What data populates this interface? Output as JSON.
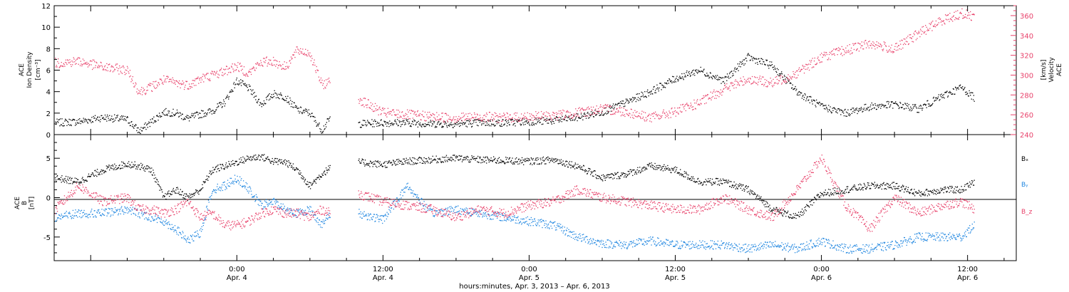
{
  "chart_data": [
    {
      "type": "scatter",
      "panel": "top",
      "ylabel_left_lines": [
        "ACE",
        "Ion Density",
        "[cm⁻³]"
      ],
      "ylabel_right_lines": [
        "ACE",
        "Velocity",
        "[km/s]"
      ],
      "ylim_left": [
        0,
        12
      ],
      "yticks_left": [
        "0",
        "2",
        "4",
        "6",
        "8",
        "10",
        "12"
      ],
      "ylim_right": [
        240,
        370
      ],
      "yticks_right": [
        "240",
        "260",
        "280",
        "300",
        "320",
        "340",
        "360"
      ],
      "data_gap_hours": [
        22.8,
        24.8
      ],
      "series": [
        {
          "axis": "left",
          "color": "#000000",
          "x_hours": [
            0.1,
            2,
            4,
            6,
            7,
            8,
            9,
            10,
            11,
            12,
            13,
            14,
            15,
            16,
            17,
            18,
            19,
            20,
            21,
            22,
            22.7,
            25,
            27,
            29,
            31,
            33,
            35,
            37,
            39,
            41,
            43,
            45,
            47,
            49,
            51,
            53,
            55,
            57,
            59,
            61,
            63,
            65,
            67,
            69,
            71,
            73,
            74.5,
            75.6
          ],
          "y": [
            1.1,
            1.2,
            1.6,
            1.4,
            0.3,
            1.2,
            2.1,
            2.0,
            1.5,
            1.9,
            2.2,
            3.0,
            5.0,
            4.3,
            2.8,
            3.8,
            3.5,
            2.3,
            2.0,
            0.4,
            1.6,
            1.0,
            1.1,
            1.1,
            1.0,
            1.0,
            1.1,
            1.1,
            1.2,
            1.3,
            1.6,
            2.1,
            3.0,
            4.0,
            5.2,
            6.0,
            5.0,
            7.2,
            6.4,
            4.0,
            2.6,
            2.0,
            2.6,
            2.8,
            2.4,
            3.6,
            4.4,
            3.4
          ]
        },
        {
          "axis": "right",
          "color": "#e8416a",
          "x_hours": [
            0.1,
            2,
            4,
            6,
            7,
            8,
            9,
            10,
            11,
            12,
            13,
            14,
            15,
            16,
            17,
            18,
            19,
            20,
            21,
            22,
            22.7,
            25,
            27,
            29,
            31,
            33,
            35,
            37,
            39,
            41,
            43,
            45,
            47,
            49,
            51,
            53,
            55,
            57,
            59,
            61,
            63,
            65,
            67,
            69,
            71,
            73,
            74.5,
            75.6
          ],
          "y": [
            312,
            314,
            308,
            305,
            283,
            288,
            295,
            292,
            290,
            296,
            300,
            304,
            309,
            302,
            313,
            314,
            308,
            325,
            322,
            290,
            294,
            276,
            262,
            260,
            258,
            257,
            258,
            257,
            258,
            259,
            262,
            266,
            263,
            257,
            263,
            272,
            286,
            296,
            292,
            302,
            318,
            325,
            332,
            326,
            342,
            356,
            362,
            359
          ]
        }
      ]
    },
    {
      "type": "scatter",
      "panel": "bottom",
      "ylabel_lines": [
        "ACE",
        "B",
        "[nT]"
      ],
      "ylim": [
        -8,
        8
      ],
      "yticks": [
        "-5",
        "0",
        "5"
      ],
      "zero_line": true,
      "data_gap_hours": [
        22.8,
        24.8
      ],
      "legend": [
        "Bₓ",
        "Bᵧ",
        "B_z"
      ],
      "series": [
        {
          "name": "Bₓ",
          "color": "#000000",
          "x_hours": [
            0.1,
            2,
            4,
            6,
            7,
            8,
            9,
            10,
            11,
            12,
            13,
            14,
            15,
            16,
            17,
            18,
            19,
            20,
            21,
            22,
            22.7,
            25,
            27,
            29,
            31,
            33,
            35,
            37,
            39,
            41,
            43,
            45,
            47,
            49,
            51,
            53,
            55,
            57,
            59,
            61,
            63,
            65,
            67,
            69,
            71,
            73,
            74.5,
            75.6
          ],
          "y": [
            2.5,
            2.0,
            3.5,
            4.3,
            4.0,
            3.5,
            0.0,
            1.0,
            0.0,
            1.0,
            3.5,
            4.0,
            4.5,
            5.0,
            5.2,
            4.6,
            4.5,
            3.5,
            1.5,
            3.0,
            3.8,
            4.5,
            4.2,
            4.6,
            4.8,
            5.0,
            4.8,
            4.7,
            4.6,
            4.8,
            4.0,
            2.5,
            3.0,
            4.0,
            3.5,
            2.0,
            2.0,
            1.0,
            -1.5,
            -2.5,
            0.5,
            1.0,
            1.5,
            1.5,
            0.5,
            1.0,
            1.0,
            2.0
          ]
        },
        {
          "name": "Bᵧ",
          "color": "#1f86e0",
          "x_hours": [
            0.1,
            2,
            4,
            6,
            7,
            8,
            9,
            10,
            11,
            12,
            13,
            14,
            15,
            16,
            17,
            18,
            19,
            20,
            21,
            22,
            22.7,
            25,
            27,
            29,
            31,
            33,
            35,
            37,
            39,
            41,
            43,
            45,
            47,
            49,
            51,
            53,
            55,
            57,
            59,
            61,
            63,
            65,
            67,
            69,
            71,
            73,
            74.5,
            75.6
          ],
          "y": [
            -2.5,
            -2.0,
            -2.0,
            -1.5,
            -2.0,
            -2.5,
            -3.0,
            -4.0,
            -5.5,
            -4.5,
            1.0,
            1.5,
            2.5,
            1.0,
            -1.0,
            -0.5,
            -1.5,
            -2.0,
            -1.5,
            -3.5,
            -2.0,
            -2.0,
            -2.8,
            1.5,
            -2.0,
            -1.5,
            -2.0,
            -2.5,
            -3.0,
            -3.5,
            -5.0,
            -5.8,
            -6.0,
            -5.5,
            -6.0,
            -6.0,
            -6.0,
            -6.5,
            -6.0,
            -6.5,
            -5.5,
            -6.5,
            -6.5,
            -6.0,
            -5.0,
            -5.0,
            -5.0,
            -3.5
          ]
        },
        {
          "name": "B_z",
          "color": "#e8416a",
          "x_hours": [
            0.1,
            2,
            4,
            6,
            7,
            8,
            9,
            10,
            11,
            12,
            13,
            14,
            15,
            16,
            17,
            18,
            19,
            20,
            21,
            22,
            22.7,
            25,
            27,
            29,
            31,
            33,
            35,
            37,
            39,
            41,
            43,
            45,
            47,
            49,
            51,
            53,
            55,
            57,
            59,
            61,
            63,
            65,
            67,
            69,
            71,
            73,
            74.5,
            75.6
          ],
          "y": [
            -1.5,
            1.5,
            -0.5,
            0.0,
            -1.5,
            -1.5,
            -2.0,
            -1.5,
            -0.5,
            -2.5,
            -2.0,
            -3.5,
            -3.5,
            -3.0,
            -2.0,
            -1.5,
            -2.0,
            -2.0,
            -2.5,
            -1.5,
            -2.0,
            0.5,
            -0.5,
            -1.0,
            -1.5,
            -2.5,
            -1.5,
            -2.0,
            -1.0,
            -0.5,
            1.0,
            0.0,
            -0.5,
            -1.0,
            -1.5,
            -1.5,
            0.0,
            -1.5,
            -2.5,
            1.0,
            5.0,
            -1.0,
            -4.0,
            0.0,
            -2.0,
            -1.0,
            -0.5,
            -1.5
          ]
        }
      ]
    }
  ],
  "x_axis": {
    "hours_range": [
      0,
      79
    ],
    "tick_positions_hours": [
      15,
      27,
      39,
      51,
      63,
      75
    ],
    "tick_labels_time": [
      "0:00",
      "12:00",
      "0:00",
      "12:00",
      "0:00",
      "12:00"
    ],
    "tick_labels_date": [
      "Apr. 4",
      "Apr. 4",
      "Apr. 5",
      "Apr. 5",
      "Apr. 6",
      "Apr. 6"
    ],
    "xlabel": "hours:minutes, Apr.  3, 2013 – Apr.  6, 2013"
  }
}
